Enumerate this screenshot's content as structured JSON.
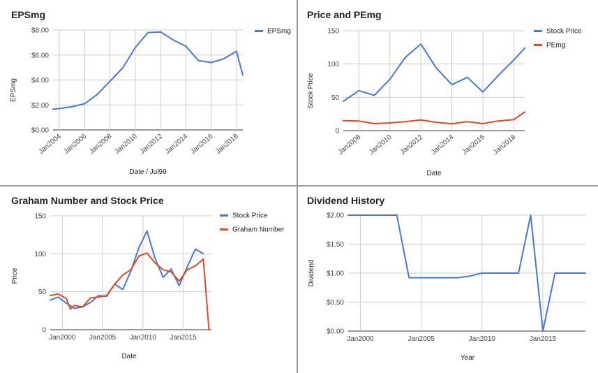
{
  "colors": {
    "blue": "#4a78cf",
    "red": "#dc4a27"
  },
  "chart_data": [
    {
      "id": "epsmg",
      "type": "line",
      "title": "EPSmg",
      "xlabel": "Date / Jul99",
      "ylabel": "EPSmg",
      "x_ticks": [
        "Jan2004",
        "Jan2006",
        "Jan2008",
        "Jan2010",
        "Jan2012",
        "Jan2014",
        "Jan2016",
        "Jan2018"
      ],
      "y_ticks": [
        "$0.00",
        "$2.00",
        "$4.00",
        "$6.00",
        "$8.00"
      ],
      "xlim": [
        2003.5,
        2018.5
      ],
      "ylim": [
        0,
        8
      ],
      "grid": true,
      "legend": "right",
      "series": [
        {
          "name": "EPSmg",
          "color": "#4a78cf",
          "points": [
            [
              2003.5,
              1.65
            ],
            [
              2004,
              1.72
            ],
            [
              2005,
              1.85
            ],
            [
              2006,
              2.1
            ],
            [
              2007,
              2.85
            ],
            [
              2008,
              3.9
            ],
            [
              2009,
              4.95
            ],
            [
              2010,
              6.6
            ],
            [
              2011,
              7.8
            ],
            [
              2012,
              7.85
            ],
            [
              2013,
              7.2
            ],
            [
              2014,
              6.7
            ],
            [
              2015,
              5.55
            ],
            [
              2016,
              5.4
            ],
            [
              2017,
              5.7
            ],
            [
              2018,
              6.3
            ],
            [
              2018.5,
              4.4
            ]
          ]
        }
      ]
    },
    {
      "id": "price-pemg",
      "type": "line",
      "title": "Price and PEmg",
      "xlabel": "Date",
      "ylabel": "Stock Price",
      "x_ticks": [
        "Jan2008",
        "Jan2010",
        "Jan2012",
        "Jan2014",
        "Jan2016",
        "Jan2018"
      ],
      "y_ticks": [
        "0",
        "50",
        "100",
        "150"
      ],
      "xlim": [
        2007,
        2018.7
      ],
      "ylim": [
        0,
        150
      ],
      "grid": true,
      "legend": "right",
      "series": [
        {
          "name": "Stock Price",
          "color": "#4a78cf",
          "points": [
            [
              2007,
              44
            ],
            [
              2008,
              60
            ],
            [
              2009,
              53
            ],
            [
              2010,
              77
            ],
            [
              2011,
              110
            ],
            [
              2012,
              130
            ],
            [
              2013,
              94
            ],
            [
              2014,
              69
            ],
            [
              2015,
              80
            ],
            [
              2016,
              58
            ],
            [
              2017,
              83
            ],
            [
              2018,
              106
            ],
            [
              2018.7,
              124
            ]
          ]
        },
        {
          "name": "PEmg",
          "color": "#dc4a27",
          "points": [
            [
              2007,
              15
            ],
            [
              2008,
              14.5
            ],
            [
              2009,
              10.5
            ],
            [
              2010,
              11.5
            ],
            [
              2011,
              13.5
            ],
            [
              2012,
              16
            ],
            [
              2013,
              12.5
            ],
            [
              2014,
              10.2
            ],
            [
              2015,
              13.5
            ],
            [
              2016,
              10.5
            ],
            [
              2017,
              14.5
            ],
            [
              2018,
              16.5
            ],
            [
              2018.7,
              28
            ]
          ]
        }
      ]
    },
    {
      "id": "graham",
      "type": "line",
      "title": "Graham Number and Stock Price",
      "xlabel": "Date",
      "ylabel": "Price",
      "x_ticks": [
        "Jan2000",
        "Jan2005",
        "Jan2010",
        "Jan2015"
      ],
      "y_ticks": [
        "0",
        "50",
        "100",
        "150"
      ],
      "xlim": [
        1998.5,
        2018.5
      ],
      "ylim": [
        0,
        150
      ],
      "grid": true,
      "legend": "right",
      "series": [
        {
          "name": "Stock Price",
          "color": "#4a78cf",
          "points": [
            [
              1998.5,
              39
            ],
            [
              1999.5,
              43
            ],
            [
              2000.5,
              35
            ],
            [
              2001.5,
              28
            ],
            [
              2002.5,
              30
            ],
            [
              2003.5,
              36
            ],
            [
              2004.5,
              45
            ],
            [
              2005.5,
              44
            ],
            [
              2006.5,
              60
            ],
            [
              2007.5,
              53
            ],
            [
              2008.5,
              77
            ],
            [
              2009.5,
              108
            ],
            [
              2010.5,
              130
            ],
            [
              2011.5,
              94
            ],
            [
              2012.5,
              69
            ],
            [
              2013.5,
              80
            ],
            [
              2014.5,
              58
            ],
            [
              2015.5,
              83
            ],
            [
              2016.5,
              106
            ],
            [
              2017.5,
              100
            ]
          ]
        },
        {
          "name": "Graham Number",
          "color": "#dc4a27",
          "points": [
            [
              1998.5,
              45
            ],
            [
              1999.5,
              47
            ],
            [
              2000.5,
              41
            ],
            [
              2001,
              27
            ],
            [
              2001.5,
              32
            ],
            [
              2002.5,
              30
            ],
            [
              2003.5,
              42
            ],
            [
              2004.5,
              43
            ],
            [
              2005.5,
              45
            ],
            [
              2006.5,
              60
            ],
            [
              2007.5,
              72
            ],
            [
              2008.5,
              79
            ],
            [
              2009.5,
              97
            ],
            [
              2010.5,
              101
            ],
            [
              2011.5,
              88
            ],
            [
              2012.5,
              79
            ],
            [
              2013.5,
              76
            ],
            [
              2014.5,
              64
            ],
            [
              2015.5,
              79
            ],
            [
              2016.5,
              84
            ],
            [
              2017.5,
              93
            ],
            [
              2018.2,
              0
            ]
          ]
        }
      ]
    },
    {
      "id": "dividend",
      "type": "line",
      "title": "Dividend History",
      "xlabel": "Year",
      "ylabel": "Dividend",
      "x_ticks": [
        "Jan2000",
        "Jan2005",
        "Jan2010",
        "Jan2015"
      ],
      "y_ticks": [
        "$0.00",
        "$0.50",
        "$1.00",
        "$1.50",
        "$2.00"
      ],
      "xlim": [
        1999,
        2018.5
      ],
      "ylim": [
        0,
        2
      ],
      "grid": true,
      "legend": "none",
      "series": [
        {
          "name": "Dividend",
          "color": "#4a78cf",
          "points": [
            [
              1999,
              2
            ],
            [
              2003,
              2
            ],
            [
              2004,
              0.92
            ],
            [
              2005,
              0.92
            ],
            [
              2006,
              0.92
            ],
            [
              2007,
              0.92
            ],
            [
              2008,
              0.92
            ],
            [
              2009,
              0.95
            ],
            [
              2010,
              1
            ],
            [
              2011,
              1
            ],
            [
              2012,
              1
            ],
            [
              2013,
              1
            ],
            [
              2014,
              2
            ],
            [
              2015,
              0
            ],
            [
              2016,
              1
            ],
            [
              2017,
              1
            ],
            [
              2018.5,
              1
            ]
          ]
        }
      ]
    }
  ]
}
